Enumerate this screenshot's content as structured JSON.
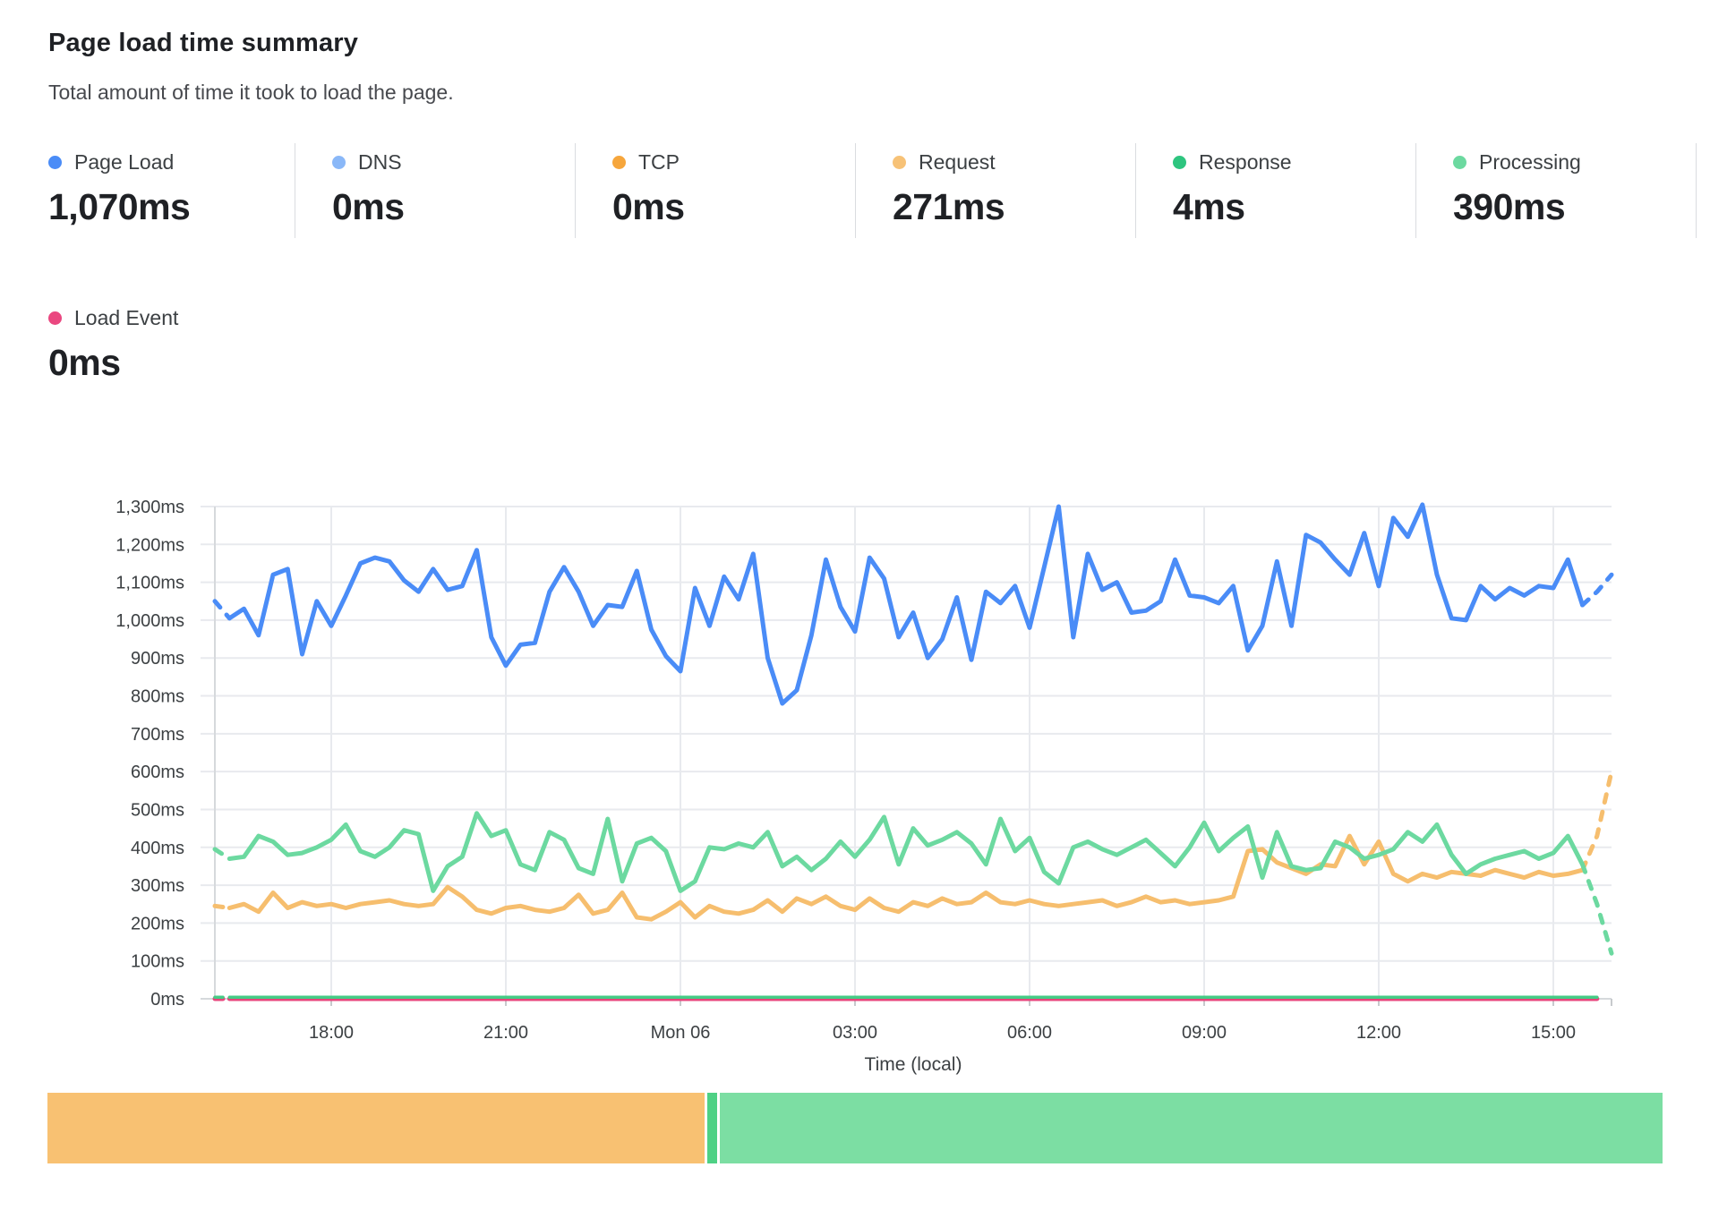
{
  "header": {
    "title": "Page load time summary",
    "subtitle": "Total amount of time it took to load the page."
  },
  "metrics": [
    {
      "label": "Page Load",
      "value": "1,070ms",
      "dot_color": "#4A8CF7"
    },
    {
      "label": "DNS",
      "value": "0ms",
      "dot_color": "#8AB8F8"
    },
    {
      "label": "TCP",
      "value": "0ms",
      "dot_color": "#F6A63C"
    },
    {
      "label": "Request",
      "value": "271ms",
      "dot_color": "#F7C277"
    },
    {
      "label": "Response",
      "value": "4ms",
      "dot_color": "#2EC57F"
    },
    {
      "label": "Processing",
      "value": "390ms",
      "dot_color": "#6CD9A0"
    }
  ],
  "metrics_row2": [
    {
      "label": "Load Event",
      "value": "0ms",
      "dot_color": "#EA4780"
    }
  ],
  "chart_data": {
    "type": "line",
    "title": "Page load time summary",
    "xlabel": "Time (local)",
    "ylabel": "",
    "ylim": [
      0,
      1300
    ],
    "grid": true,
    "legend_position": "top-stats",
    "points": 97,
    "x_interval_minutes": 15,
    "y_tick_labels": [
      "0ms",
      "100ms",
      "200ms",
      "300ms",
      "400ms",
      "500ms",
      "600ms",
      "700ms",
      "800ms",
      "900ms",
      "1,000ms",
      "1,100ms",
      "1,200ms",
      "1,300ms"
    ],
    "x_ticks": [
      {
        "index": 8,
        "label": "18:00"
      },
      {
        "index": 20,
        "label": "21:00"
      },
      {
        "index": 32,
        "label": "Mon 06"
      },
      {
        "index": 44,
        "label": "03:00"
      },
      {
        "index": 56,
        "label": "06:00"
      },
      {
        "index": 68,
        "label": "09:00"
      },
      {
        "index": 80,
        "label": "12:00"
      },
      {
        "index": 92,
        "label": "15:00"
      }
    ],
    "series": [
      {
        "name": "Request",
        "color": "#F6BE6E",
        "width": 5,
        "dash_head": true,
        "dash_tail": true,
        "values": [
          245,
          240,
          250,
          230,
          280,
          240,
          255,
          245,
          250,
          240,
          250,
          255,
          260,
          250,
          245,
          250,
          295,
          270,
          235,
          225,
          240,
          245,
          235,
          230,
          240,
          275,
          225,
          235,
          280,
          215,
          210,
          230,
          255,
          215,
          245,
          230,
          225,
          235,
          260,
          230,
          265,
          250,
          270,
          245,
          235,
          265,
          240,
          230,
          255,
          245,
          265,
          250,
          255,
          280,
          255,
          250,
          260,
          250,
          245,
          250,
          255,
          260,
          245,
          255,
          270,
          255,
          260,
          250,
          255,
          260,
          270,
          390,
          395,
          360,
          345,
          330,
          355,
          350,
          430,
          355,
          415,
          330,
          310,
          330,
          320,
          335,
          330,
          325,
          340,
          330,
          320,
          335,
          325,
          330,
          340,
          430,
          600
        ]
      },
      {
        "name": "Processing",
        "color": "#6CD9A0",
        "width": 5,
        "dash_head": true,
        "dash_tail": true,
        "values": [
          395,
          370,
          375,
          430,
          415,
          380,
          385,
          400,
          420,
          460,
          390,
          375,
          400,
          445,
          435,
          285,
          350,
          375,
          490,
          430,
          445,
          355,
          340,
          440,
          420,
          345,
          330,
          475,
          310,
          410,
          425,
          390,
          285,
          310,
          400,
          395,
          410,
          400,
          440,
          350,
          375,
          340,
          370,
          415,
          375,
          420,
          480,
          355,
          450,
          405,
          420,
          440,
          410,
          355,
          475,
          390,
          425,
          335,
          305,
          400,
          415,
          395,
          380,
          400,
          420,
          385,
          350,
          400,
          465,
          390,
          425,
          455,
          320,
          440,
          350,
          340,
          345,
          415,
          400,
          370,
          380,
          395,
          440,
          415,
          460,
          380,
          330,
          355,
          370,
          380,
          390,
          370,
          385,
          430,
          355,
          250,
          120
        ]
      },
      {
        "name": "Page Load",
        "color": "#4A8CF7",
        "width": 5,
        "dash_head": true,
        "dash_tail": true,
        "values": [
          1050,
          1005,
          1030,
          960,
          1120,
          1135,
          910,
          1050,
          985,
          1065,
          1150,
          1165,
          1155,
          1105,
          1075,
          1135,
          1080,
          1090,
          1185,
          955,
          880,
          935,
          940,
          1075,
          1140,
          1075,
          985,
          1040,
          1035,
          1130,
          975,
          905,
          865,
          1085,
          985,
          1115,
          1055,
          1175,
          900,
          780,
          815,
          960,
          1160,
          1035,
          970,
          1165,
          1110,
          955,
          1020,
          900,
          950,
          1060,
          895,
          1075,
          1045,
          1090,
          980,
          1140,
          1300,
          955,
          1175,
          1080,
          1100,
          1020,
          1025,
          1050,
          1160,
          1065,
          1060,
          1045,
          1090,
          920,
          985,
          1155,
          985,
          1225,
          1205,
          1160,
          1120,
          1230,
          1090,
          1270,
          1220,
          1305,
          1120,
          1005,
          1000,
          1090,
          1055,
          1085,
          1065,
          1090,
          1085,
          1160,
          1040,
          1075,
          1120
        ]
      },
      {
        "name": "Load Event",
        "color": "#E8447C",
        "width": 5,
        "dash_head": true,
        "dash_tail": false,
        "end_index": 95,
        "constant": 0,
        "count": 97
      },
      {
        "name": "Response",
        "color": "#45CB85",
        "width": 3.5,
        "dash_head": true,
        "dash_tail": false,
        "end_index": 95,
        "constant": 4,
        "count": 97
      }
    ]
  },
  "bar": {
    "segments": [
      {
        "name": "Request",
        "color": "#F8C172",
        "percent": 40.8
      },
      {
        "name": "Response",
        "color": "#4ED185",
        "percent": 0.65
      },
      {
        "name": "Processing",
        "color": "#7CDEA3",
        "percent": 58.55
      }
    ]
  }
}
